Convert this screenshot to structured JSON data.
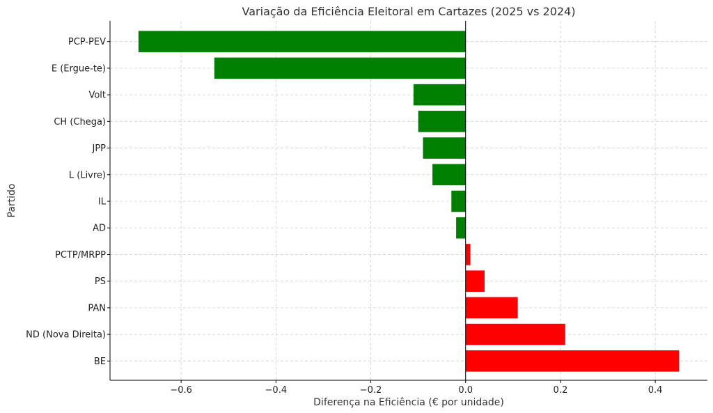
{
  "chart_data": {
    "type": "bar",
    "orientation": "horizontal",
    "title": "Variação da Eficiência Eleitoral em Cartazes (2025 vs 2024)",
    "xlabel": "Diferença na Eficiência (€ por unidade)",
    "ylabel": "Partido",
    "xlim": [
      -0.75,
      0.51
    ],
    "x_ticks": [
      -0.6,
      -0.4,
      -0.2,
      0.0,
      0.2,
      0.4
    ],
    "x_tick_labels": [
      "−0.6",
      "−0.4",
      "−0.2",
      "0.0",
      "0.2",
      "0.4"
    ],
    "grid": true,
    "categories": [
      "PCP-PEV",
      "E (Ergue-te)",
      "Volt",
      "CH (Chega)",
      "JPP",
      "L (Livre)",
      "IL",
      "AD",
      "PCTP/MRPP",
      "PS",
      "PAN",
      "ND (Nova Direita)",
      "BE"
    ],
    "values": [
      -0.69,
      -0.53,
      -0.11,
      -0.1,
      -0.09,
      -0.07,
      -0.03,
      -0.02,
      0.01,
      0.04,
      0.11,
      0.21,
      0.45
    ],
    "colors": {
      "negative": "#008000",
      "positive": "#ff0000"
    }
  }
}
